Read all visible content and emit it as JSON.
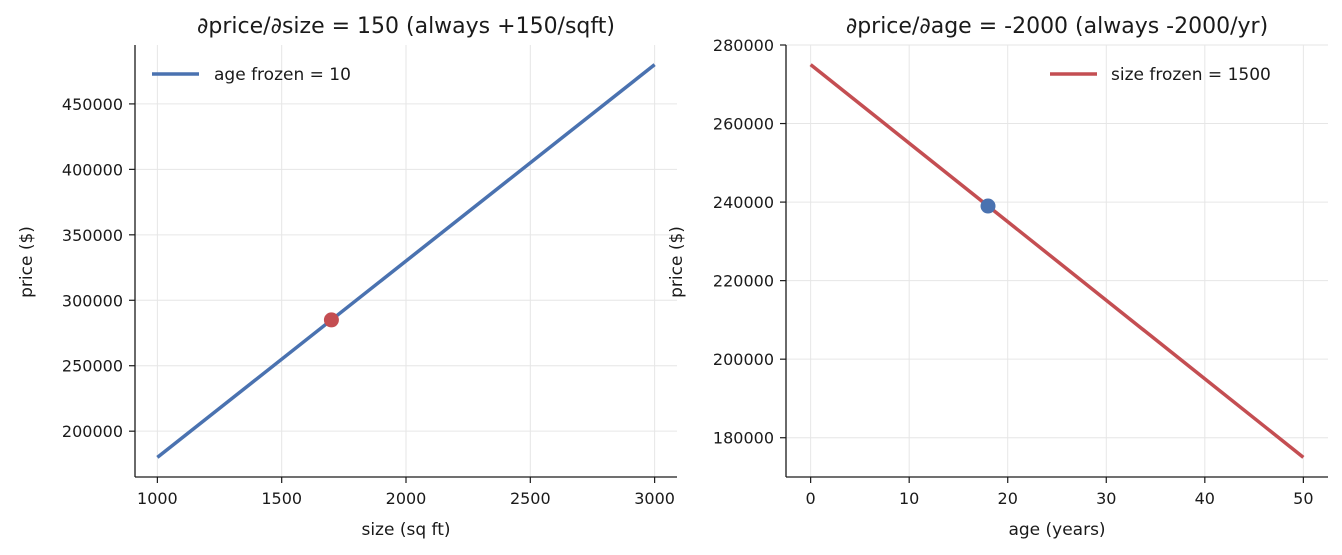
{
  "chart_data": [
    {
      "type": "line",
      "title": "∂price/∂size = 150  (always +150/sqft)",
      "xlabel": "size (sq ft)",
      "ylabel": "price ($)",
      "xlim": [
        910,
        3090
      ],
      "ylim": [
        165000,
        495000
      ],
      "xticks": [
        1000,
        1500,
        2000,
        2500,
        3000
      ],
      "yticks": [
        200000,
        250000,
        300000,
        350000,
        400000,
        450000
      ],
      "grid": true,
      "legend_position": "top-left",
      "series": [
        {
          "name": "age frozen = 10",
          "color": "#4a72b0",
          "x": [
            1000,
            3000
          ],
          "y": [
            180000,
            480000
          ]
        }
      ],
      "marker": {
        "x": 1700,
        "y": 285000,
        "color": "#c44e52"
      }
    },
    {
      "type": "line",
      "title": "∂price/∂age = -2000  (always -2000/yr)",
      "xlabel": "age (years)",
      "ylabel": "price ($)",
      "xlim": [
        -2.5,
        52.5
      ],
      "ylim": [
        170000,
        280000
      ],
      "xticks": [
        0,
        10,
        20,
        30,
        40,
        50
      ],
      "yticks": [
        180000,
        200000,
        220000,
        240000,
        260000,
        280000
      ],
      "grid": true,
      "legend_position": "top-right",
      "series": [
        {
          "name": "size frozen = 1500",
          "color": "#c44e52",
          "x": [
            0,
            50
          ],
          "y": [
            275000,
            175000
          ]
        }
      ],
      "marker": {
        "x": 18,
        "y": 239000,
        "color": "#4a72b0"
      }
    }
  ]
}
